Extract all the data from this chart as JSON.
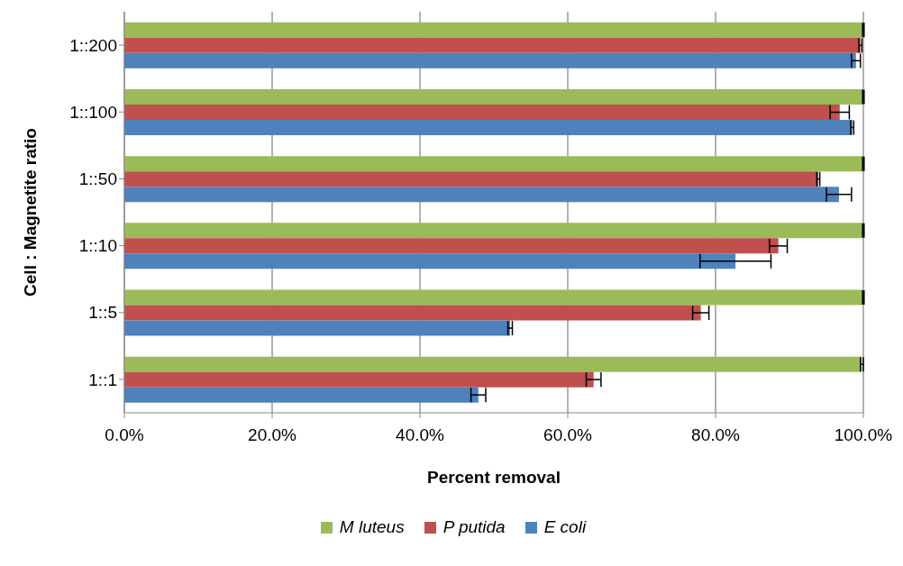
{
  "chart_data": {
    "type": "bar",
    "orientation": "horizontal",
    "xlabel": "Percent removal",
    "ylabel": "Cell : Magnetite ratio",
    "categories": [
      "1::200",
      "1::100",
      "1::50",
      "1::10",
      "1::5",
      "1::1"
    ],
    "series": [
      {
        "name": "M luteus",
        "color": "#9bbb59",
        "values": [
          100,
          100,
          100,
          100,
          100,
          99.8
        ],
        "errors": [
          0.1,
          0.1,
          0.1,
          0.1,
          0.1,
          0.2
        ]
      },
      {
        "name": "P putida",
        "color": "#c0504d",
        "values": [
          99.6,
          96.8,
          93.9,
          88.5,
          78.0,
          63.5
        ],
        "errors": [
          0.2,
          1.3,
          0.2,
          1.2,
          1.1,
          1.0
        ]
      },
      {
        "name": "E coli",
        "color": "#4f81bd",
        "values": [
          99.0,
          98.5,
          96.7,
          82.7,
          52.2,
          47.9
        ],
        "errors": [
          0.6,
          0.2,
          1.7,
          4.8,
          0.3,
          1.0
        ]
      }
    ],
    "xlim": [
      0,
      100
    ],
    "xticks": [
      {
        "value": 0,
        "label": "0.0%"
      },
      {
        "value": 20,
        "label": "20.0%"
      },
      {
        "value": 40,
        "label": "40.0%"
      },
      {
        "value": 60,
        "label": "60.0%"
      },
      {
        "value": 80,
        "label": "80.0%"
      },
      {
        "value": 100,
        "label": "100.0%"
      }
    ],
    "grid": "x",
    "legend": "bottom"
  }
}
